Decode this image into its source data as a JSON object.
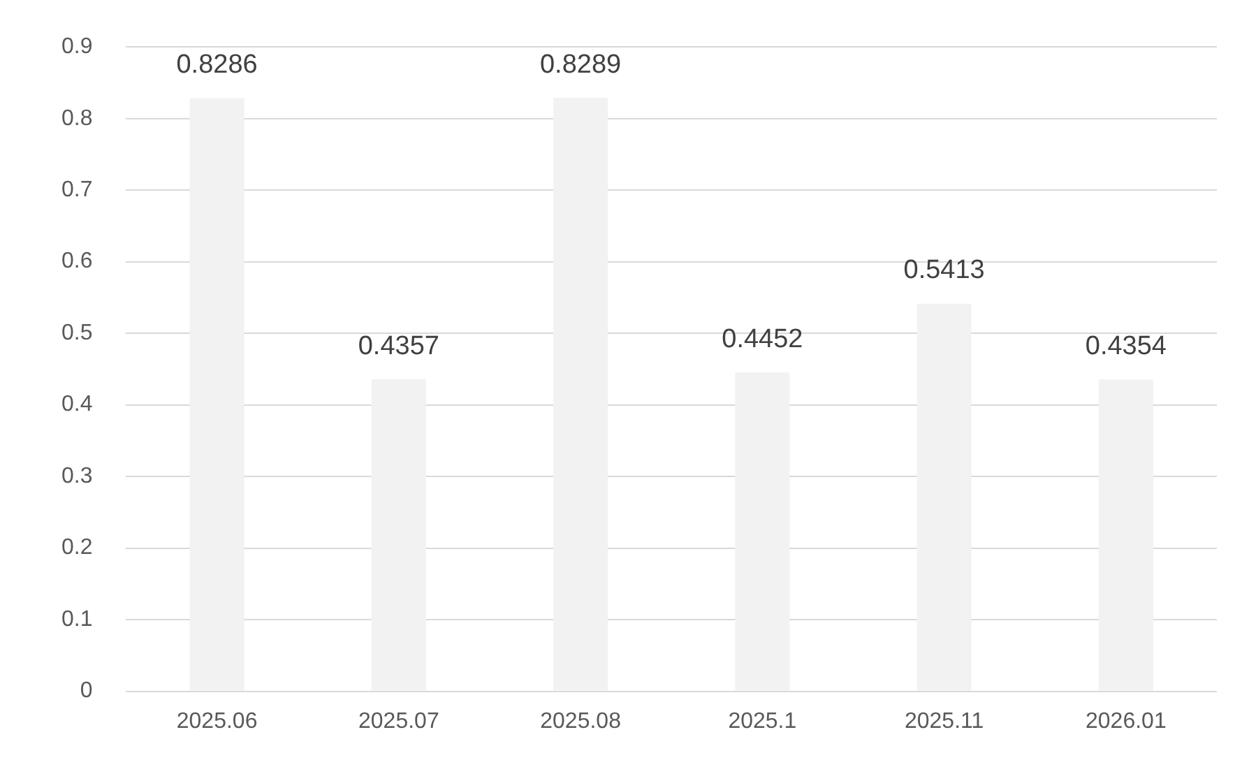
{
  "chart_data": {
    "type": "bar",
    "categories": [
      "2025.06",
      "2025.07",
      "2025.08",
      "2025.1",
      "2025.11",
      "2026.01"
    ],
    "values": [
      0.8286,
      0.4357,
      0.8289,
      0.4452,
      0.5413,
      0.4354
    ],
    "color": "#f2f2f2",
    "ylim": [
      0,
      0.9
    ],
    "yticks": [
      0,
      0.1,
      0.2,
      0.3,
      0.4,
      0.5,
      0.6,
      0.7,
      0.8,
      0.9
    ],
    "grid": "y",
    "data_labels": true,
    "legend": false
  }
}
